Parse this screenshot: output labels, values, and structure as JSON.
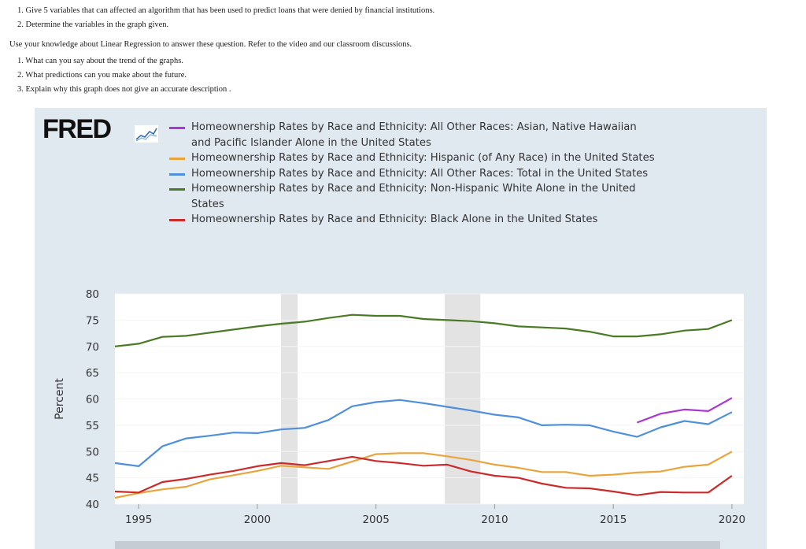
{
  "assignment": {
    "questions": [
      "1.  Give 5 variables that can affected an algorithm that has been used to predict loans that were denied by financial institutions.",
      "2.  Determine the variables in the graph given."
    ],
    "intro": "Use your knowledge about Linear Regression to answer these question. Refer to the video and our classroom discussions.",
    "prompts": [
      "1.  What can you say about the trend of the graphs.",
      "2.  What predictions can you make about the future.",
      "3.  Explain why this graph does not give an accurate description ."
    ]
  },
  "fred": {
    "logo": "FRED",
    "panel_color": "#e1e9f0"
  },
  "chart_data": {
    "type": "line",
    "title": "",
    "xlabel": "",
    "ylabel": "Percent",
    "xlim": [
      1994,
      2020.5
    ],
    "ylim": [
      40,
      80
    ],
    "xticks": [
      1995,
      2000,
      2005,
      2010,
      2015,
      2020
    ],
    "yticks": [
      40,
      45,
      50,
      55,
      60,
      65,
      70,
      75,
      80
    ],
    "recessions": [
      [
        2001.0,
        2001.7
      ],
      [
        2007.9,
        2009.4
      ]
    ],
    "series": [
      {
        "name": "Homeownership Rates by Race and Ethnicity: All Other Races: Asian, Native Hawaiian and Pacific Islander Alone in the United States",
        "color": "#a936d6",
        "x": [
          2016,
          2017,
          2018,
          2019,
          2020
        ],
        "values": [
          55.5,
          57.2,
          58.0,
          57.7,
          60.2
        ]
      },
      {
        "name": "Homeownership Rates by Race and Ethnicity: Hispanic (of Any Race) in the United States",
        "color": "#e9a53c",
        "x": [
          1994,
          1995,
          1996,
          1997,
          1998,
          1999,
          2000,
          2001,
          2002,
          2003,
          2004,
          2005,
          2006,
          2007,
          2008,
          2009,
          2010,
          2011,
          2012,
          2013,
          2014,
          2015,
          2016,
          2017,
          2018,
          2019,
          2020
        ],
        "values": [
          41.2,
          42.1,
          42.8,
          43.3,
          44.7,
          45.5,
          46.3,
          47.3,
          47.0,
          46.7,
          48.1,
          49.5,
          49.7,
          49.7,
          49.1,
          48.4,
          47.5,
          46.9,
          46.1,
          46.1,
          45.4,
          45.6,
          46.0,
          46.2,
          47.1,
          47.5,
          50.0
        ]
      },
      {
        "name": "Homeownership Rates by Race and Ethnicity: All Other Races: Total in the United States",
        "color": "#4f8fdc",
        "x": [
          1994,
          1995,
          1996,
          1997,
          1998,
          1999,
          2000,
          2001,
          2002,
          2003,
          2004,
          2005,
          2006,
          2007,
          2008,
          2009,
          2010,
          2011,
          2012,
          2013,
          2014,
          2015,
          2016,
          2017,
          2018,
          2019,
          2020
        ],
        "values": [
          47.8,
          47.2,
          51.0,
          52.5,
          53.0,
          53.6,
          53.5,
          54.2,
          54.5,
          56.0,
          58.6,
          59.4,
          59.8,
          59.2,
          58.5,
          57.8,
          57.0,
          56.5,
          55.0,
          55.1,
          55.0,
          53.8,
          52.8,
          54.6,
          55.8,
          55.2,
          57.5
        ]
      },
      {
        "name": "Homeownership Rates by Race and Ethnicity: Non-Hispanic White Alone in the United States",
        "color": "#4a7a23",
        "x": [
          1994,
          1995,
          1996,
          1997,
          1998,
          1999,
          2000,
          2001,
          2002,
          2003,
          2004,
          2005,
          2006,
          2007,
          2008,
          2009,
          2010,
          2011,
          2012,
          2013,
          2014,
          2015,
          2016,
          2017,
          2018,
          2019,
          2020
        ],
        "values": [
          70.0,
          70.5,
          71.8,
          72.0,
          72.6,
          73.2,
          73.8,
          74.3,
          74.7,
          75.4,
          76.0,
          75.8,
          75.8,
          75.2,
          75.0,
          74.8,
          74.4,
          73.8,
          73.6,
          73.4,
          72.8,
          71.9,
          71.9,
          72.3,
          73.0,
          73.3,
          75.0
        ]
      },
      {
        "name": "Homeownership Rates by Race and Ethnicity: Black Alone in the United States",
        "color": "#cc2a2a",
        "x": [
          1994,
          1995,
          1996,
          1997,
          1998,
          1999,
          2000,
          2001,
          2002,
          2003,
          2004,
          2005,
          2006,
          2007,
          2008,
          2009,
          2010,
          2011,
          2012,
          2013,
          2014,
          2015,
          2016,
          2017,
          2018,
          2019,
          2020
        ],
        "values": [
          42.4,
          42.2,
          44.2,
          44.8,
          45.6,
          46.3,
          47.2,
          47.8,
          47.4,
          48.2,
          49.0,
          48.2,
          47.8,
          47.3,
          47.5,
          46.2,
          45.4,
          45.0,
          43.9,
          43.1,
          43.0,
          42.4,
          41.7,
          42.3,
          42.2,
          42.2,
          45.4
        ]
      }
    ]
  }
}
